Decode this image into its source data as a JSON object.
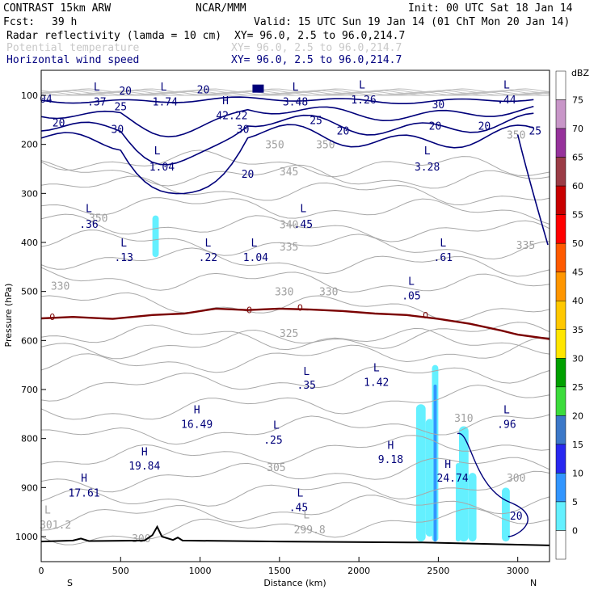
{
  "header": {
    "model": "CONTRAST 15km ARW",
    "org": "NCAR/MMM",
    "init": "Init: 00 UTC Sat 18 Jan 14",
    "fcst_label": "Fcst:",
    "fcst_hours": "39 h",
    "valid": "Valid: 15 UTC Sun 19 Jan 14 (01 ChT Mon 20 Jan 14)"
  },
  "fields": [
    {
      "name": "Radar reflectivity (lamda = 10 cm)",
      "xy": "XY=  96.0,  2.5 to  96.0,214.7",
      "color": "#000000"
    },
    {
      "name": "Potential temperature",
      "xy": "XY=  96.0,  2.5 to  96.0,214.7",
      "color": "#b4b4b4"
    },
    {
      "name": "Horizontal wind speed",
      "xy": "XY=  96.0,  2.5 to  96.0,214.7",
      "color": "#000080"
    }
  ],
  "colors": {
    "theta": "#a8a8a8",
    "wind": "#00007a",
    "freezing": "#7a0000",
    "terrain": "#000000",
    "axis": "#000000"
  },
  "chart_data": {
    "type": "heatmap",
    "xlabel": "Distance (km)",
    "ylabel": "Pressure (hPa)",
    "x_ticks": [
      "0",
      "500",
      "1000",
      "1500",
      "2000",
      "2500",
      "3000"
    ],
    "y_ticks": [
      "100",
      "200",
      "300",
      "400",
      "500",
      "600",
      "700",
      "800",
      "900",
      "1000"
    ],
    "x_end_left": "S",
    "x_end_right": "N",
    "xlim": [
      0,
      3200
    ],
    "ylim": [
      1050,
      45
    ],
    "colorbar": {
      "unit": "dBZ",
      "levels": [
        "75",
        "70",
        "65",
        "60",
        "55",
        "50",
        "45",
        "40",
        "35",
        "30",
        "25",
        "20",
        "15",
        "10",
        "5",
        "0"
      ],
      "colors": [
        "#ffffff",
        "#c896c8",
        "#96329b",
        "#9b3c46",
        "#c80000",
        "#ff0000",
        "#ff5a00",
        "#ff9600",
        "#ffc800",
        "#ffe600",
        "#00a000",
        "#3cdc3c",
        "#3c78c8",
        "#2828f0",
        "#3296ff",
        "#64f0ff",
        "#ffffff"
      ]
    },
    "freezing_level": [
      [
        0,
        555
      ],
      [
        200,
        552
      ],
      [
        450,
        556
      ],
      [
        700,
        548
      ],
      [
        900,
        545
      ],
      [
        1100,
        535
      ],
      [
        1300,
        538
      ],
      [
        1500,
        535
      ],
      [
        1700,
        537
      ],
      [
        1900,
        540
      ],
      [
        2100,
        545
      ],
      [
        2300,
        548
      ],
      [
        2500,
        556
      ],
      [
        2700,
        566
      ],
      [
        2900,
        580
      ],
      [
        3000,
        588
      ],
      [
        3200,
        597
      ]
    ],
    "freezing_labels": [
      {
        "x": 70,
        "p": 552,
        "text": "0"
      },
      {
        "x": 1310,
        "p": 538,
        "text": "0"
      },
      {
        "x": 1630,
        "p": 533,
        "text": "0"
      },
      {
        "x": 2420,
        "p": 548,
        "text": "0"
      }
    ],
    "theta_labels": [
      {
        "x": 360,
        "p": 350,
        "text": "350"
      },
      {
        "x": 1470,
        "p": 200,
        "text": "350"
      },
      {
        "x": 1790,
        "p": 200,
        "text": "350"
      },
      {
        "x": 2990,
        "p": 180,
        "text": "350"
      },
      {
        "x": 1560,
        "p": 255,
        "text": "345"
      },
      {
        "x": 1560,
        "p": 363,
        "text": "340"
      },
      {
        "x": 1560,
        "p": 408,
        "text": "335"
      },
      {
        "x": 3050,
        "p": 405,
        "text": "335"
      },
      {
        "x": 120,
        "p": 488,
        "text": "330"
      },
      {
        "x": 1530,
        "p": 500,
        "text": "330"
      },
      {
        "x": 1810,
        "p": 500,
        "text": "330"
      },
      {
        "x": 1560,
        "p": 585,
        "text": "325"
      },
      {
        "x": 2660,
        "p": 758,
        "text": "310"
      },
      {
        "x": 1480,
        "p": 858,
        "text": "305"
      },
      {
        "x": 2990,
        "p": 880,
        "text": "300"
      },
      {
        "x": 630,
        "p": 1003,
        "text": "300"
      }
    ],
    "extrema": [
      {
        "x": 350,
        "p": 82,
        "text": "L"
      },
      {
        "x": 350,
        "p": 112,
        "text": ".37"
      },
      {
        "x": 770,
        "p": 82,
        "text": "L"
      },
      {
        "x": 780,
        "p": 112,
        "text": "1.74"
      },
      {
        "x": 1160,
        "p": 110,
        "text": "H"
      },
      {
        "x": 1200,
        "p": 140,
        "text": "42.22"
      },
      {
        "x": 1600,
        "p": 82,
        "text": "L"
      },
      {
        "x": 1600,
        "p": 112,
        "text": "3.48"
      },
      {
        "x": 2020,
        "p": 78,
        "text": "L"
      },
      {
        "x": 2030,
        "p": 108,
        "text": "1.26"
      },
      {
        "x": 2930,
        "p": 78,
        "text": "L"
      },
      {
        "x": 2930,
        "p": 108,
        "text": ".44"
      },
      {
        "x": 730,
        "p": 212,
        "text": "L"
      },
      {
        "x": 760,
        "p": 245,
        "text": "1.04"
      },
      {
        "x": 2430,
        "p": 212,
        "text": "L"
      },
      {
        "x": 2430,
        "p": 245,
        "text": "3.28"
      },
      {
        "x": 300,
        "p": 330,
        "text": "L"
      },
      {
        "x": 300,
        "p": 362,
        "text": ".36"
      },
      {
        "x": 1650,
        "p": 330,
        "text": "L"
      },
      {
        "x": 1650,
        "p": 362,
        "text": ".45"
      },
      {
        "x": 520,
        "p": 400,
        "text": "L"
      },
      {
        "x": 520,
        "p": 430,
        "text": ".13"
      },
      {
        "x": 1050,
        "p": 400,
        "text": "L"
      },
      {
        "x": 1050,
        "p": 430,
        "text": ".22"
      },
      {
        "x": 1340,
        "p": 400,
        "text": "L"
      },
      {
        "x": 1350,
        "p": 430,
        "text": "1.04"
      },
      {
        "x": 2530,
        "p": 400,
        "text": "L"
      },
      {
        "x": 2530,
        "p": 430,
        "text": ".61"
      },
      {
        "x": 2330,
        "p": 478,
        "text": "L"
      },
      {
        "x": 2330,
        "p": 508,
        "text": ".05"
      },
      {
        "x": 2110,
        "p": 655,
        "text": "L"
      },
      {
        "x": 2110,
        "p": 684,
        "text": "1.42"
      },
      {
        "x": 1670,
        "p": 662,
        "text": "L"
      },
      {
        "x": 1670,
        "p": 690,
        "text": ".35"
      },
      {
        "x": 980,
        "p": 740,
        "text": "H"
      },
      {
        "x": 980,
        "p": 770,
        "text": "16.49"
      },
      {
        "x": 2930,
        "p": 740,
        "text": "L"
      },
      {
        "x": 2930,
        "p": 770,
        "text": ".96"
      },
      {
        "x": 1480,
        "p": 772,
        "text": "L"
      },
      {
        "x": 1460,
        "p": 802,
        "text": ".25"
      },
      {
        "x": 650,
        "p": 826,
        "text": "H"
      },
      {
        "x": 650,
        "p": 855,
        "text": "19.84"
      },
      {
        "x": 2200,
        "p": 813,
        "text": "H"
      },
      {
        "x": 2200,
        "p": 842,
        "text": "9.18"
      },
      {
        "x": 2560,
        "p": 852,
        "text": "H"
      },
      {
        "x": 2590,
        "p": 880,
        "text": "24.74"
      },
      {
        "x": 270,
        "p": 880,
        "text": "H"
      },
      {
        "x": 270,
        "p": 910,
        "text": "17.61"
      },
      {
        "x": 1630,
        "p": 910,
        "text": "L"
      },
      {
        "x": 1620,
        "p": 940,
        "text": ".45"
      }
    ],
    "theta_extrema": [
      {
        "x": 40,
        "p": 945,
        "text": "L"
      },
      {
        "x": 90,
        "p": 975,
        "text": "301.2"
      },
      {
        "x": 1670,
        "p": 955,
        "text": "L"
      },
      {
        "x": 1690,
        "p": 985,
        "text": "299.8"
      }
    ],
    "wind_labels": [
      {
        "x": 30,
        "p": 107,
        "text": "04"
      },
      {
        "x": 530,
        "p": 90,
        "text": "20"
      },
      {
        "x": 1020,
        "p": 88,
        "text": "20"
      },
      {
        "x": 500,
        "p": 122,
        "text": "25"
      },
      {
        "x": 2500,
        "p": 118,
        "text": "30"
      },
      {
        "x": 110,
        "p": 155,
        "text": "20"
      },
      {
        "x": 480,
        "p": 168,
        "text": "30"
      },
      {
        "x": 1270,
        "p": 168,
        "text": "30"
      },
      {
        "x": 1730,
        "p": 150,
        "text": "25"
      },
      {
        "x": 2480,
        "p": 162,
        "text": "20"
      },
      {
        "x": 2790,
        "p": 162,
        "text": "20"
      },
      {
        "x": 1900,
        "p": 172,
        "text": "20"
      },
      {
        "x": 3110,
        "p": 172,
        "text": "25"
      },
      {
        "x": 1300,
        "p": 260,
        "text": "20"
      },
      {
        "x": 2990,
        "p": 957,
        "text": "20"
      }
    ],
    "reflectivity_blobs": [
      {
        "x0": 700,
        "x1": 740,
        "p0": 345,
        "p1": 430,
        "level": "5"
      },
      {
        "x0": 2360,
        "x1": 2420,
        "p0": 730,
        "p1": 1010,
        "level": "5"
      },
      {
        "x0": 2420,
        "x1": 2470,
        "p0": 760,
        "p1": 1000,
        "level": "5"
      },
      {
        "x0": 2460,
        "x1": 2500,
        "p0": 650,
        "p1": 1010,
        "level": "5"
      },
      {
        "x0": 2470,
        "x1": 2490,
        "p0": 690,
        "p1": 1010,
        "level": "10"
      },
      {
        "x0": 2610,
        "x1": 2640,
        "p0": 850,
        "p1": 1010,
        "level": "5"
      },
      {
        "x0": 2630,
        "x1": 2690,
        "p0": 775,
        "p1": 1010,
        "level": "5"
      },
      {
        "x0": 2690,
        "x1": 2740,
        "p0": 870,
        "p1": 1010,
        "level": "5"
      },
      {
        "x0": 2900,
        "x1": 2950,
        "p0": 900,
        "p1": 1010,
        "level": "5"
      }
    ],
    "grid": false,
    "legend": "right"
  }
}
